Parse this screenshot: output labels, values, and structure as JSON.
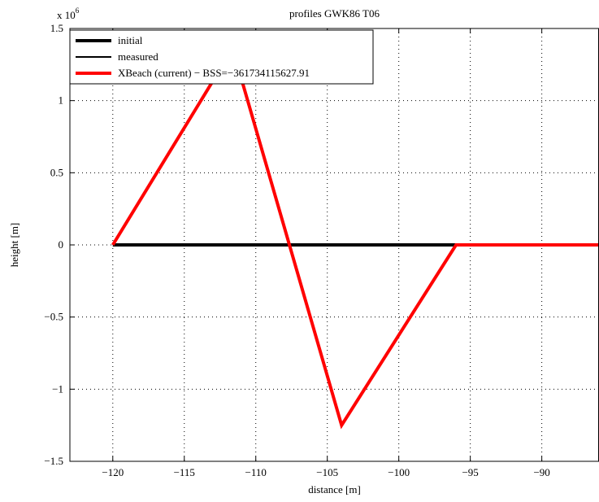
{
  "chart_data": {
    "type": "line",
    "title": "profiles GWK86 T06",
    "xlabel": "distance [m]",
    "ylabel": "height [m]",
    "y_exponent_label": "x 10",
    "y_exponent_power": "6",
    "y_scale": 1000000,
    "xlim": [
      -123,
      -86
    ],
    "ylim": [
      -1500000,
      1500000
    ],
    "x_ticks": [
      -120,
      -115,
      -110,
      -105,
      -100,
      -95,
      -90
    ],
    "x_tick_labels": [
      "−120",
      "−115",
      "−110",
      "−105",
      "−100",
      "−95",
      "−90"
    ],
    "y_ticks": [
      -1500000,
      -1000000,
      -500000,
      0,
      500000,
      1000000,
      1500000
    ],
    "y_tick_labels": [
      "−1.5",
      "−1",
      "−0.5",
      "0",
      "0.5",
      "1",
      "1.5"
    ],
    "grid": true,
    "legend_position": "top-left",
    "series": [
      {
        "name": "initial",
        "color": "#000000",
        "width": "thick",
        "x": [
          -120,
          -96
        ],
        "y": [
          0,
          0
        ]
      },
      {
        "name": "measured",
        "color": "#000000",
        "width": "thin",
        "x": [],
        "y": []
      },
      {
        "name": "XBeach (current) − BSS=−361734115627.91",
        "color": "#ff0000",
        "width": "thick",
        "x": [
          -120,
          -112.3,
          -111.3,
          -104,
          -96,
          -86
        ],
        "y": [
          0,
          1250000,
          1250000,
          -1250000,
          0,
          0
        ]
      }
    ]
  }
}
